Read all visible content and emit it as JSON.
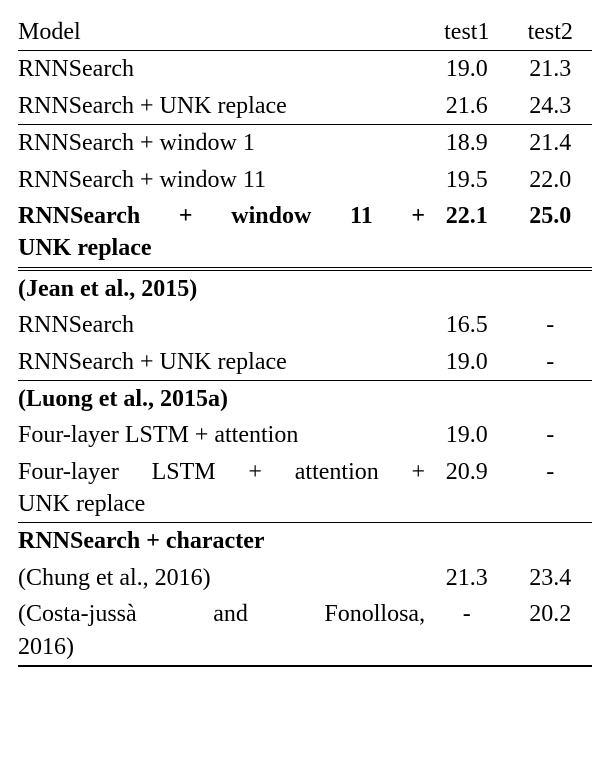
{
  "header": {
    "model": "Model",
    "test1": "test1",
    "test2": "test2"
  },
  "sec1": [
    {
      "m": "RNNSearch",
      "t1": "19.0",
      "t2": "21.3"
    },
    {
      "m": "RNNSearch + UNK replace",
      "t1": "21.6",
      "t2": "24.3"
    }
  ],
  "sec2": [
    {
      "m": "RNNSearch + window 1",
      "t1": "18.9",
      "t2": "21.4"
    },
    {
      "m": "RNNSearch + window 11",
      "t1": "19.5",
      "t2": "22.0"
    },
    {
      "line1": "RNNSearch + window 11 +",
      "line2": "UNK replace",
      "t1": "22.1",
      "t2": "25.0",
      "bold": true
    }
  ],
  "sec3": {
    "title": "(Jean et al., 2015)",
    "rows": [
      {
        "m": "RNNSearch",
        "t1": "16.5",
        "t2": "-"
      },
      {
        "m": "RNNSearch + UNK replace",
        "t1": "19.0",
        "t2": "-"
      }
    ]
  },
  "sec4": {
    "title": "(Luong et al., 2015a)",
    "rows": [
      {
        "m": "Four-layer LSTM + attention",
        "t1": "19.0",
        "t2": "-"
      },
      {
        "line1": "Four-layer LSTM + attention +",
        "line2": "UNK replace",
        "t1": "20.9",
        "t2": "-"
      }
    ]
  },
  "sec5": {
    "title": "RNNSearch + character",
    "rows": [
      {
        "m": "(Chung et al., 2016)",
        "t1": "21.3",
        "t2": "23.4"
      },
      {
        "line1": "(Costa-jussà and Fonollosa,",
        "line2": "2016)",
        "t1": "-",
        "t2": "20.2"
      }
    ]
  }
}
